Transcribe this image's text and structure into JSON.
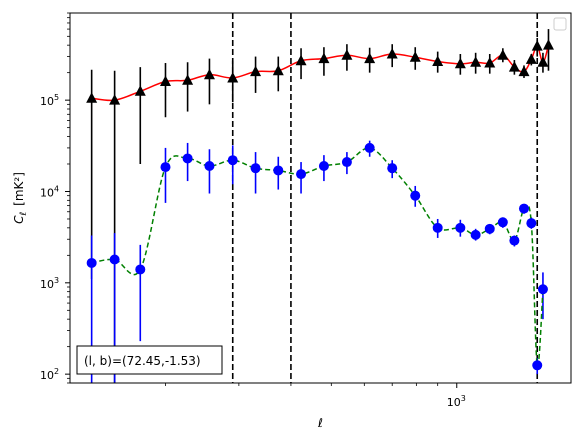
{
  "chart_data": {
    "type": "line",
    "xlabel": "ℓ",
    "ylabel_main": "C",
    "ylabel_sub": "ℓ",
    "ylabel_unit": "[mK²]",
    "xscale": "log",
    "yscale": "log",
    "xlim": [
      118,
      1880
    ],
    "ylim": [
      80,
      900000
    ],
    "x_ticks": [
      {
        "value": 1000,
        "base": "10",
        "exp": "3"
      }
    ],
    "y_ticks": [
      {
        "value": 100,
        "base": "10",
        "exp": "2"
      },
      {
        "value": 1000,
        "base": "10",
        "exp": "3"
      },
      {
        "value": 10000,
        "base": "10",
        "exp": "4"
      },
      {
        "value": 100000,
        "base": "10",
        "exp": "5"
      }
    ],
    "vlines": [
      290,
      400,
      1560
    ],
    "annotation": "(l, b)=(72.45,-1.53)",
    "legend": {
      "position": "top-right",
      "entries": []
    },
    "series": [
      {
        "marker": "triangle",
        "line_color": "#ff0000",
        "line_style": "solid",
        "marker_color": "#000000",
        "error_color": "#000000",
        "points": [
          {
            "x": 133,
            "y": 105000,
            "lo": 1100,
            "hi": 215000
          },
          {
            "x": 151,
            "y": 100000,
            "lo": 80,
            "hi": 210000
          },
          {
            "x": 174,
            "y": 125000,
            "lo": 20000,
            "hi": 230000
          },
          {
            "x": 200,
            "y": 160000,
            "lo": 65000,
            "hi": 255000
          },
          {
            "x": 226,
            "y": 165000,
            "lo": 75000,
            "hi": 260000
          },
          {
            "x": 255,
            "y": 190000,
            "lo": 90000,
            "hi": 285000
          },
          {
            "x": 290,
            "y": 175000,
            "lo": 95000,
            "hi": 270000
          },
          {
            "x": 329,
            "y": 205000,
            "lo": 120000,
            "hi": 300000
          },
          {
            "x": 373,
            "y": 210000,
            "lo": 125000,
            "hi": 300000
          },
          {
            "x": 423,
            "y": 270000,
            "lo": 170000,
            "hi": 370000
          },
          {
            "x": 480,
            "y": 285000,
            "lo": 185000,
            "hi": 380000
          },
          {
            "x": 545,
            "y": 310000,
            "lo": 210000,
            "hi": 410000
          },
          {
            "x": 618,
            "y": 285000,
            "lo": 200000,
            "hi": 375000
          },
          {
            "x": 700,
            "y": 320000,
            "lo": 230000,
            "hi": 410000
          },
          {
            "x": 795,
            "y": 295000,
            "lo": 215000,
            "hi": 380000
          },
          {
            "x": 900,
            "y": 265000,
            "lo": 200000,
            "hi": 340000
          },
          {
            "x": 1020,
            "y": 250000,
            "lo": 190000,
            "hi": 320000
          },
          {
            "x": 1110,
            "y": 260000,
            "lo": 195000,
            "hi": 330000
          },
          {
            "x": 1200,
            "y": 255000,
            "lo": 195000,
            "hi": 320000
          },
          {
            "x": 1290,
            "y": 310000,
            "lo": 260000,
            "hi": 370000
          },
          {
            "x": 1375,
            "y": 230000,
            "lo": 190000,
            "hi": 275000
          },
          {
            "x": 1450,
            "y": 205000,
            "lo": 175000,
            "hi": 240000
          },
          {
            "x": 1510,
            "y": 280000,
            "lo": 240000,
            "hi": 320000
          },
          {
            "x": 1560,
            "y": 390000,
            "lo": 300000,
            "hi": 480000
          },
          {
            "x": 1610,
            "y": 260000,
            "lo": 200000,
            "hi": 330000
          },
          {
            "x": 1660,
            "y": 400000,
            "lo": 210000,
            "hi": 600000
          }
        ]
      },
      {
        "marker": "circle",
        "line_color": "#008000",
        "line_style": "dashed",
        "marker_color": "#0000ff",
        "error_color": "#0000ff",
        "points": [
          {
            "x": 133,
            "y": 1650,
            "lo": 80,
            "hi": 3300
          },
          {
            "x": 151,
            "y": 1800,
            "lo": 80,
            "hi": 3500
          },
          {
            "x": 174,
            "y": 1400,
            "lo": 230,
            "hi": 2600
          },
          {
            "x": 200,
            "y": 18500,
            "lo": 7500,
            "hi": 30000
          },
          {
            "x": 226,
            "y": 23000,
            "lo": 13000,
            "hi": 34000
          },
          {
            "x": 255,
            "y": 19000,
            "lo": 9500,
            "hi": 29000
          },
          {
            "x": 290,
            "y": 22000,
            "lo": 12000,
            "hi": 32000
          },
          {
            "x": 329,
            "y": 18000,
            "lo": 9500,
            "hi": 27000
          },
          {
            "x": 373,
            "y": 17000,
            "lo": 10500,
            "hi": 24000
          },
          {
            "x": 423,
            "y": 15500,
            "lo": 9500,
            "hi": 21000
          },
          {
            "x": 480,
            "y": 19000,
            "lo": 13000,
            "hi": 25000
          },
          {
            "x": 545,
            "y": 21000,
            "lo": 15500,
            "hi": 27000
          },
          {
            "x": 618,
            "y": 30000,
            "lo": 24000,
            "hi": 36000
          },
          {
            "x": 700,
            "y": 18000,
            "lo": 14000,
            "hi": 22000
          },
          {
            "x": 795,
            "y": 9000,
            "lo": 6800,
            "hi": 11500
          },
          {
            "x": 900,
            "y": 4000,
            "lo": 3100,
            "hi": 5000
          },
          {
            "x": 1020,
            "y": 4000,
            "lo": 3200,
            "hi": 4900
          },
          {
            "x": 1110,
            "y": 3350,
            "lo": 2900,
            "hi": 3900
          },
          {
            "x": 1200,
            "y": 3900,
            "lo": 3400,
            "hi": 4400
          },
          {
            "x": 1290,
            "y": 4600,
            "lo": 4000,
            "hi": 5200
          },
          {
            "x": 1375,
            "y": 2900,
            "lo": 2500,
            "hi": 3300
          },
          {
            "x": 1450,
            "y": 6500,
            "lo": 5700,
            "hi": 7300
          },
          {
            "x": 1510,
            "y": 4500,
            "lo": 3900,
            "hi": 5200
          },
          {
            "x": 1560,
            "y": 125,
            "lo": 100,
            "hi": 150
          },
          {
            "x": 1610,
            "y": 850,
            "lo": 400,
            "hi": 1300
          }
        ]
      }
    ]
  }
}
